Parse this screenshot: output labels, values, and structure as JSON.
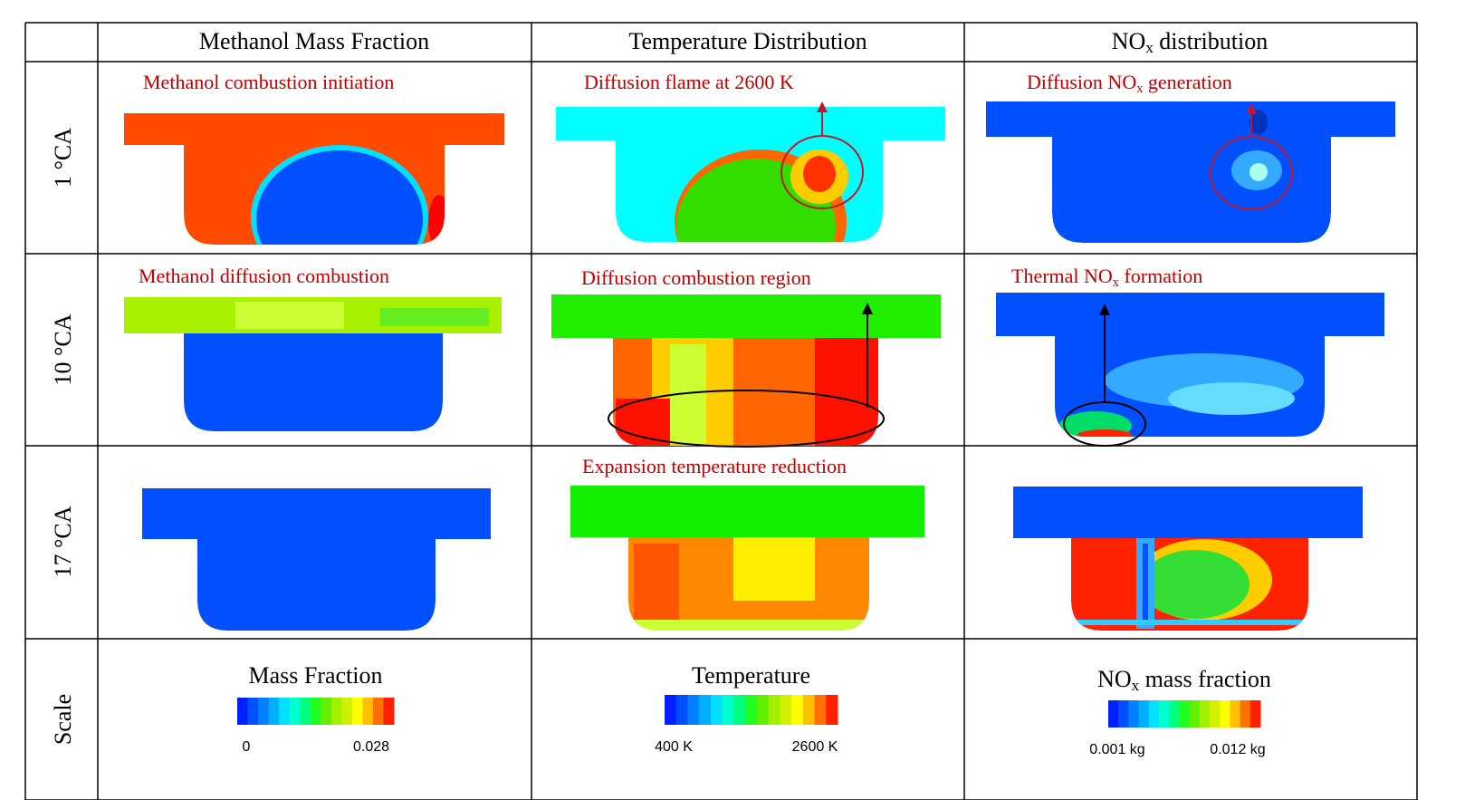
{
  "header": {
    "columns": [
      {
        "text": "Methanol Mass Fraction"
      },
      {
        "text": "Temperature Distribution"
      },
      {
        "text": "NO",
        "sub": "x",
        "rest": " distribution"
      }
    ]
  },
  "rows": [
    {
      "label": "1 °CA",
      "notes": {
        "mass_fraction": {
          "text": "Methanol combustion initiation"
        },
        "temperature": {
          "text": "Diffusion flame at 2600 K"
        },
        "nox": {
          "text": "Diffusion NO",
          "sub": "x",
          "rest": " generation"
        }
      }
    },
    {
      "label": "10 °CA",
      "notes": {
        "mass_fraction": {
          "text": "Methanol diffusion combustion"
        },
        "temperature": {
          "text": "Diffusion combustion region"
        },
        "nox": {
          "text": "Thermal NO",
          "sub": "x",
          "rest": " formation"
        }
      }
    },
    {
      "label": "17 °CA",
      "notes": {
        "temperature": {
          "text": "Expansion temperature reduction"
        }
      }
    }
  ],
  "scale": {
    "label": "Scale",
    "items": [
      {
        "title": {
          "text": "Mass Fraction"
        },
        "min": "0",
        "max": "0.028"
      },
      {
        "title": {
          "text": "Temperature"
        },
        "min": "400 K",
        "max": "2600 K"
      },
      {
        "title": {
          "text": "NO",
          "sub": "x",
          "rest": " mass fraction"
        },
        "min": "0.001 kg",
        "max": "0.012 kg"
      }
    ]
  }
}
